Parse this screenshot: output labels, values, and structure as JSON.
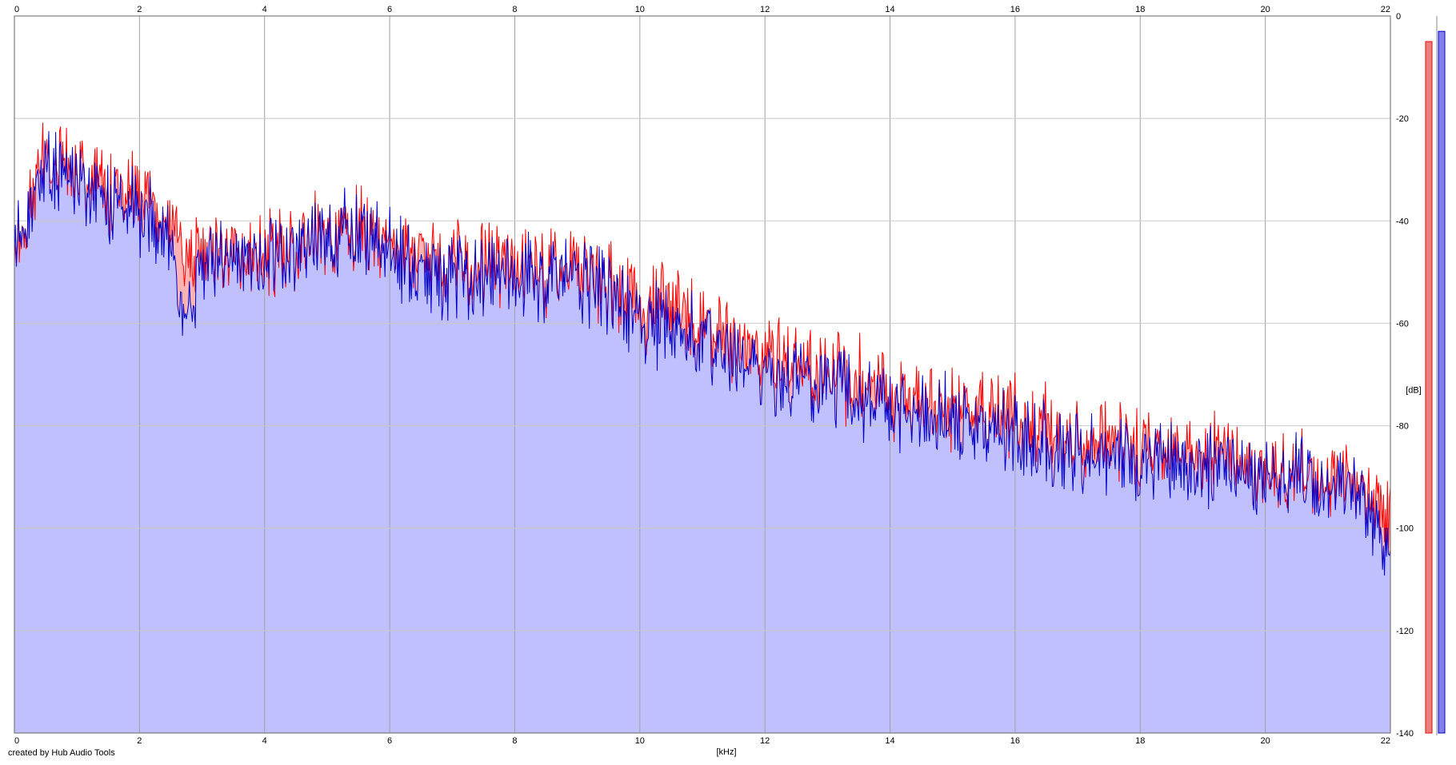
{
  "credit": "created by Hub Audio Tools",
  "chart_data": {
    "type": "area",
    "xlabel": "[kHz]",
    "ylabel": "[dB]",
    "xlim": [
      0,
      22
    ],
    "ylim": [
      -140,
      0
    ],
    "x_ticks": [
      "0",
      "2",
      "4",
      "6",
      "8",
      "10",
      "12",
      "14",
      "16",
      "18",
      "20",
      "22"
    ],
    "y_ticks": [
      "0",
      "-20",
      "-40",
      "-60",
      "-80",
      "-100",
      "-120",
      "-140"
    ],
    "grid": true,
    "series": [
      {
        "color": "#ff0000",
        "fill": "#ffb4b4",
        "x": [
          0.05,
          0.5,
          1,
          1.5,
          2,
          2.5,
          2.7,
          3,
          3.5,
          4,
          4.5,
          5,
          5.5,
          6,
          6.5,
          7,
          7.5,
          8,
          8.5,
          9,
          9.5,
          10,
          10.5,
          11,
          11.5,
          12,
          12.5,
          13,
          13.5,
          14,
          14.5,
          15,
          15.5,
          16,
          16.5,
          17,
          17.5,
          18,
          18.5,
          19,
          19.5,
          20,
          20.5,
          21,
          21.5,
          22
        ],
        "values": [
          -45,
          -28,
          -31,
          -34,
          -36,
          -41,
          -46,
          -48,
          -47,
          -47,
          -46,
          -42,
          -42,
          -44,
          -47,
          -48,
          -48,
          -49,
          -50,
          -50,
          -52,
          -56,
          -58,
          -60,
          -63,
          -66,
          -68,
          -70,
          -71,
          -73,
          -75,
          -76,
          -78,
          -79,
          -80,
          -82,
          -83,
          -84,
          -84,
          -85,
          -86,
          -88,
          -89,
          -91,
          -93,
          -97
        ]
      },
      {
        "color": "#0000cc",
        "fill": "#c0c0ff",
        "x": [
          0.05,
          0.5,
          1,
          1.5,
          2,
          2.5,
          2.7,
          3,
          3.5,
          4,
          4.5,
          5,
          5.5,
          6,
          6.5,
          7,
          7.5,
          8,
          8.5,
          9,
          9.5,
          10,
          10.5,
          11,
          11.5,
          12,
          12.5,
          13,
          13.5,
          14,
          14.5,
          15,
          15.5,
          16,
          16.5,
          17,
          17.5,
          18,
          18.5,
          19,
          19.5,
          20,
          20.5,
          21,
          21.5,
          22
        ],
        "values": [
          -45,
          -30,
          -33,
          -36,
          -39,
          -44,
          -60,
          -49,
          -48,
          -48,
          -47,
          -43,
          -43,
          -46,
          -50,
          -51,
          -50,
          -52,
          -51,
          -51,
          -54,
          -59,
          -62,
          -63,
          -67,
          -70,
          -71,
          -72,
          -74,
          -76,
          -78,
          -79,
          -81,
          -83,
          -84,
          -85,
          -86,
          -87,
          -87,
          -88,
          -89,
          -89,
          -90,
          -92,
          -95,
          -104
        ]
      }
    ],
    "meters": [
      {
        "color": "#ff0000",
        "fill": "#e88080",
        "level_db": -5
      },
      {
        "color": "#0000cc",
        "fill": "#8080e8",
        "level_db": -3
      }
    ]
  }
}
